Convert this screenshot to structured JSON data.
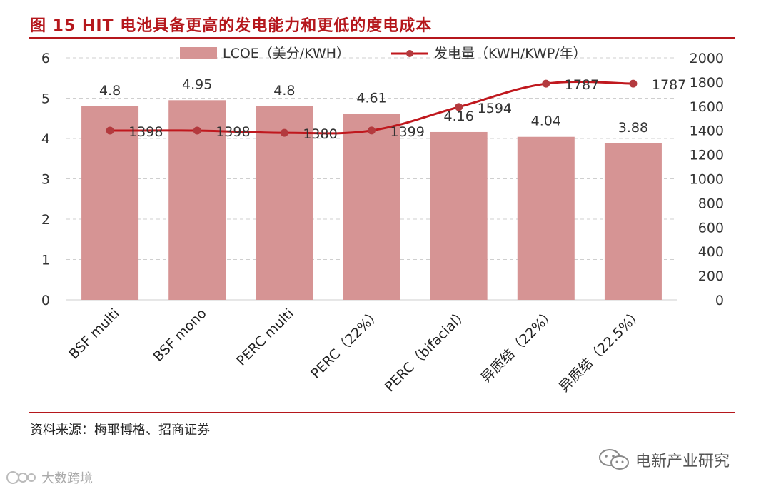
{
  "figure": {
    "title": "图 15 HIT 电池具备更高的发电能力和更低的度电成本",
    "source": "资料来源：梅耶博格、招商证券"
  },
  "watermarks": {
    "right": "电新产业研究",
    "left": "大数跨境"
  },
  "colors": {
    "accent": "#b5171c",
    "bar": "#d69494",
    "line": "#c0181e",
    "marker": "#b33a3e"
  },
  "chart_data": {
    "type": "bar",
    "title": "",
    "categories": [
      "BSF multi",
      "BSF mono",
      "PERC multi",
      "PERC（22%）",
      "PERC（bifacial）",
      "异质结（22%）",
      "异质结（22.5%）"
    ],
    "series": [
      {
        "name": "LCOE（美分/KWH）",
        "type": "bar",
        "axis": "left",
        "values": [
          4.8,
          4.95,
          4.8,
          4.61,
          4.16,
          4.04,
          3.88
        ],
        "labels": [
          "4.8",
          "4.95",
          "4.8",
          "4.61",
          "4.16",
          "4.04",
          "3.88"
        ]
      },
      {
        "name": "发电量（KWH/KWP/年）",
        "type": "line",
        "axis": "right",
        "values": [
          1398,
          1398,
          1380,
          1399,
          1594,
          1787,
          1787
        ],
        "labels": [
          "1398",
          "1398",
          "1380",
          "1399",
          "1594",
          "1787",
          "1787"
        ]
      }
    ],
    "y_left": {
      "min": 0,
      "max": 6,
      "ticks": [
        "0",
        "1",
        "2",
        "3",
        "4",
        "5",
        "6"
      ]
    },
    "y_right": {
      "min": 0,
      "max": 2000,
      "ticks": [
        "0",
        "200",
        "400",
        "600",
        "800",
        "1000",
        "1200",
        "1400",
        "1600",
        "1800",
        "2000"
      ]
    },
    "legend_position": "top",
    "grid": "dashed horizontal"
  }
}
